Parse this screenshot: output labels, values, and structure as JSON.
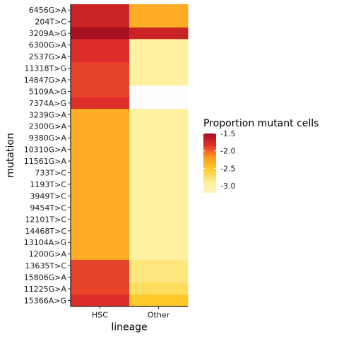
{
  "chart_data": {
    "type": "heatmap",
    "xlabel": "lineage",
    "ylabel": "mutation",
    "x_categories": [
      "HSC",
      "Other"
    ],
    "y_categories": [
      "6456G>A",
      "204T>C",
      "3209A>G",
      "6300G>A",
      "2537G>A",
      "11318T>G",
      "14847G>A",
      "5109A>G",
      "7374A>G",
      "3239G>A",
      "2300G>A",
      "9380G>A",
      "10310G>A",
      "11561G>A",
      "733T>C",
      "1193T>C",
      "3949T>C",
      "9454T>C",
      "12101T>C",
      "14468T>C",
      "13104A>G",
      "1200G>A",
      "13635T>C",
      "15806G>A",
      "11225G>A",
      "15366A>G"
    ],
    "values": [
      [
        -1.7,
        -2.3
      ],
      [
        -1.7,
        -2.3
      ],
      [
        -1.5,
        -1.7
      ],
      [
        -1.8,
        -3.0
      ],
      [
        -1.8,
        -3.0
      ],
      [
        -1.9,
        -3.0
      ],
      [
        -1.9,
        -3.0
      ],
      [
        -1.9,
        null
      ],
      [
        -1.8,
        null
      ],
      [
        -2.3,
        -3.0
      ],
      [
        -2.3,
        -3.0
      ],
      [
        -2.3,
        -3.0
      ],
      [
        -2.3,
        -3.0
      ],
      [
        -2.3,
        -3.0
      ],
      [
        -2.3,
        -3.0
      ],
      [
        -2.3,
        -3.0
      ],
      [
        -2.3,
        -3.0
      ],
      [
        -2.3,
        -3.0
      ],
      [
        -2.3,
        -3.0
      ],
      [
        -2.3,
        -3.0
      ],
      [
        -2.3,
        -3.0
      ],
      [
        -2.3,
        -3.0
      ],
      [
        -1.9,
        -2.8
      ],
      [
        -1.9,
        -2.8
      ],
      [
        -1.9,
        -2.7
      ],
      [
        -1.8,
        -2.5
      ]
    ],
    "legend": {
      "title": "Proportion mutant cells",
      "placement": "right",
      "min": -3.2,
      "max": -1.5,
      "ticks": [
        -1.5,
        -2.0,
        -2.5,
        -3.0
      ],
      "tick_labels": [
        "-1.5",
        "-2.0",
        "-2.5",
        "-3.0"
      ],
      "colors": [
        "#fff7bc",
        "#ffec8f",
        "#ffcc29",
        "#fd9a23",
        "#e3312a",
        "#a50f20"
      ]
    },
    "na_color": "#fdfdfd",
    "grid": false
  }
}
